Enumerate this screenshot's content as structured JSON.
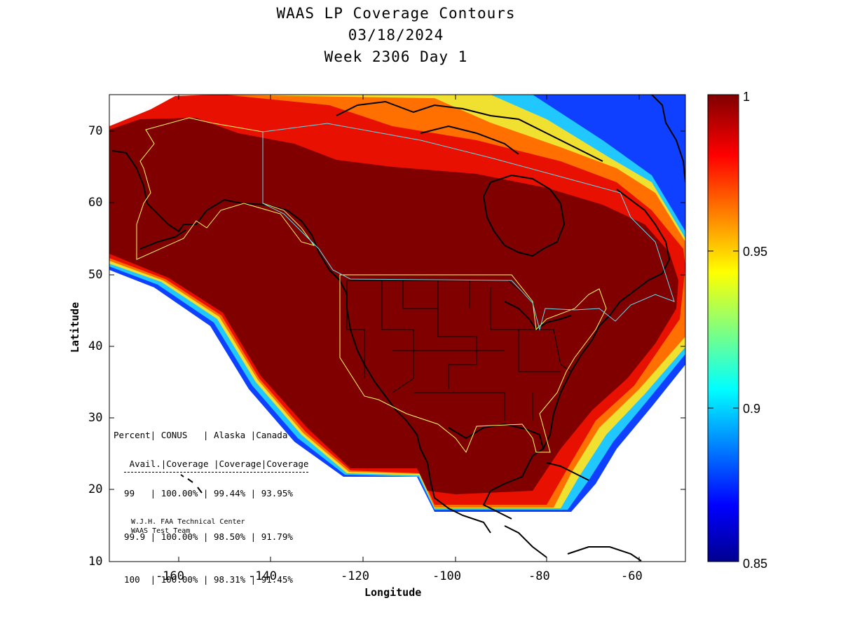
{
  "title": {
    "line1": "WAAS LP Coverage Contours",
    "line2": "03/18/2024",
    "line3": "Week 2306 Day 1"
  },
  "axes": {
    "xlabel": "Longitude",
    "ylabel": "Latitude",
    "x_ticks": [
      "-160",
      "-140",
      "-120",
      "-100",
      "-80",
      "-60"
    ],
    "y_ticks": [
      "70",
      "60",
      "50",
      "40",
      "30",
      "20",
      "10"
    ],
    "xlim": [
      -175,
      -50
    ],
    "ylim": [
      10,
      75
    ]
  },
  "colorbar": {
    "min": 0.85,
    "max": 1,
    "labels": [
      "1",
      "0.95",
      "0.9",
      "0.85"
    ],
    "colormap": "jet"
  },
  "stats_table": {
    "header1": "Percent| CONUS   | Alaska |Canada",
    "header2": " Avail.|Coverage |Coverage|Coverage",
    "rows": [
      "  99   | 100.00% | 99.44% | 93.95%",
      "  99.9 | 100.00% | 98.50% | 91.79%",
      "  100  | 100.00% | 98.31% | 91.45%"
    ]
  },
  "credits": {
    "line1": "W.J.H. FAA Technical Center",
    "line2": "WAAS Test Team"
  },
  "colors": {
    "coverage_full": "#800000",
    "alaska_boundary": "#ffff66",
    "canada_boundary": "#66ddee",
    "coastline": "#000000"
  }
}
